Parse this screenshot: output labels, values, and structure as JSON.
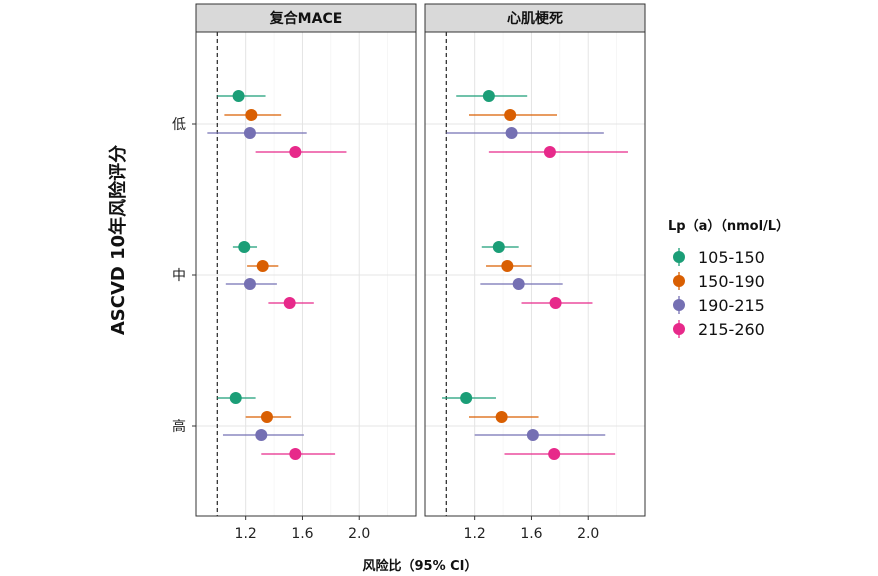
{
  "chart_data": {
    "type": "scatter",
    "subtype": "forest-plot",
    "xlabel": "风险比（95% CI）",
    "ylabel": "ASCVD 10年风险评分",
    "x_ticks": [
      "1.2",
      "1.6",
      "2.0"
    ],
    "x_tick_values": [
      1.2,
      1.6,
      2.0
    ],
    "xlim": [
      0.85,
      2.4
    ],
    "reference_line": 1.0,
    "grid": true,
    "y_categories": [
      "低",
      "中",
      "高"
    ],
    "legend": {
      "title": "Lp（a）（nmol/L）",
      "placement": "right",
      "entries": [
        "105-150",
        "150-190",
        "190-215",
        "215-260"
      ]
    },
    "colors": {
      "105-150": "#1b9e77",
      "150-190": "#d95f02",
      "190-215": "#7570b3",
      "215-260": "#e7298a"
    },
    "panels": [
      {
        "title": "复合MACE",
        "groups": [
          {
            "category": "低",
            "points": [
              {
                "series": "105-150",
                "hr": 1.15,
                "lo": 1.0,
                "hi": 1.34
              },
              {
                "series": "150-190",
                "hr": 1.24,
                "lo": 1.05,
                "hi": 1.45
              },
              {
                "series": "190-215",
                "hr": 1.23,
                "lo": 0.93,
                "hi": 1.63
              },
              {
                "series": "215-260",
                "hr": 1.55,
                "lo": 1.27,
                "hi": 1.91
              }
            ]
          },
          {
            "category": "中",
            "points": [
              {
                "series": "105-150",
                "hr": 1.19,
                "lo": 1.11,
                "hi": 1.28
              },
              {
                "series": "150-190",
                "hr": 1.32,
                "lo": 1.21,
                "hi": 1.43
              },
              {
                "series": "190-215",
                "hr": 1.23,
                "lo": 1.06,
                "hi": 1.42
              },
              {
                "series": "215-260",
                "hr": 1.51,
                "lo": 1.36,
                "hi": 1.68
              }
            ]
          },
          {
            "category": "高",
            "points": [
              {
                "series": "105-150",
                "hr": 1.13,
                "lo": 1.0,
                "hi": 1.27
              },
              {
                "series": "150-190",
                "hr": 1.35,
                "lo": 1.2,
                "hi": 1.52
              },
              {
                "series": "190-215",
                "hr": 1.31,
                "lo": 1.04,
                "hi": 1.61
              },
              {
                "series": "215-260",
                "hr": 1.55,
                "lo": 1.31,
                "hi": 1.83
              }
            ]
          }
        ]
      },
      {
        "title": "心肌梗死",
        "groups": [
          {
            "category": "低",
            "points": [
              {
                "series": "105-150",
                "hr": 1.3,
                "lo": 1.07,
                "hi": 1.57
              },
              {
                "series": "150-190",
                "hr": 1.45,
                "lo": 1.16,
                "hi": 1.78
              },
              {
                "series": "190-215",
                "hr": 1.46,
                "lo": 1.0,
                "hi": 2.11
              },
              {
                "series": "215-260",
                "hr": 1.73,
                "lo": 1.3,
                "hi": 2.28
              }
            ]
          },
          {
            "category": "中",
            "points": [
              {
                "series": "105-150",
                "hr": 1.37,
                "lo": 1.25,
                "hi": 1.51
              },
              {
                "series": "150-190",
                "hr": 1.43,
                "lo": 1.28,
                "hi": 1.6
              },
              {
                "series": "190-215",
                "hr": 1.51,
                "lo": 1.24,
                "hi": 1.82
              },
              {
                "series": "215-260",
                "hr": 1.77,
                "lo": 1.53,
                "hi": 2.03
              }
            ]
          },
          {
            "category": "高",
            "points": [
              {
                "series": "105-150",
                "hr": 1.14,
                "lo": 0.97,
                "hi": 1.35
              },
              {
                "series": "150-190",
                "hr": 1.39,
                "lo": 1.16,
                "hi": 1.65
              },
              {
                "series": "190-215",
                "hr": 1.61,
                "lo": 1.2,
                "hi": 2.12
              },
              {
                "series": "215-260",
                "hr": 1.76,
                "lo": 1.41,
                "hi": 2.19
              }
            ]
          }
        ]
      }
    ]
  }
}
